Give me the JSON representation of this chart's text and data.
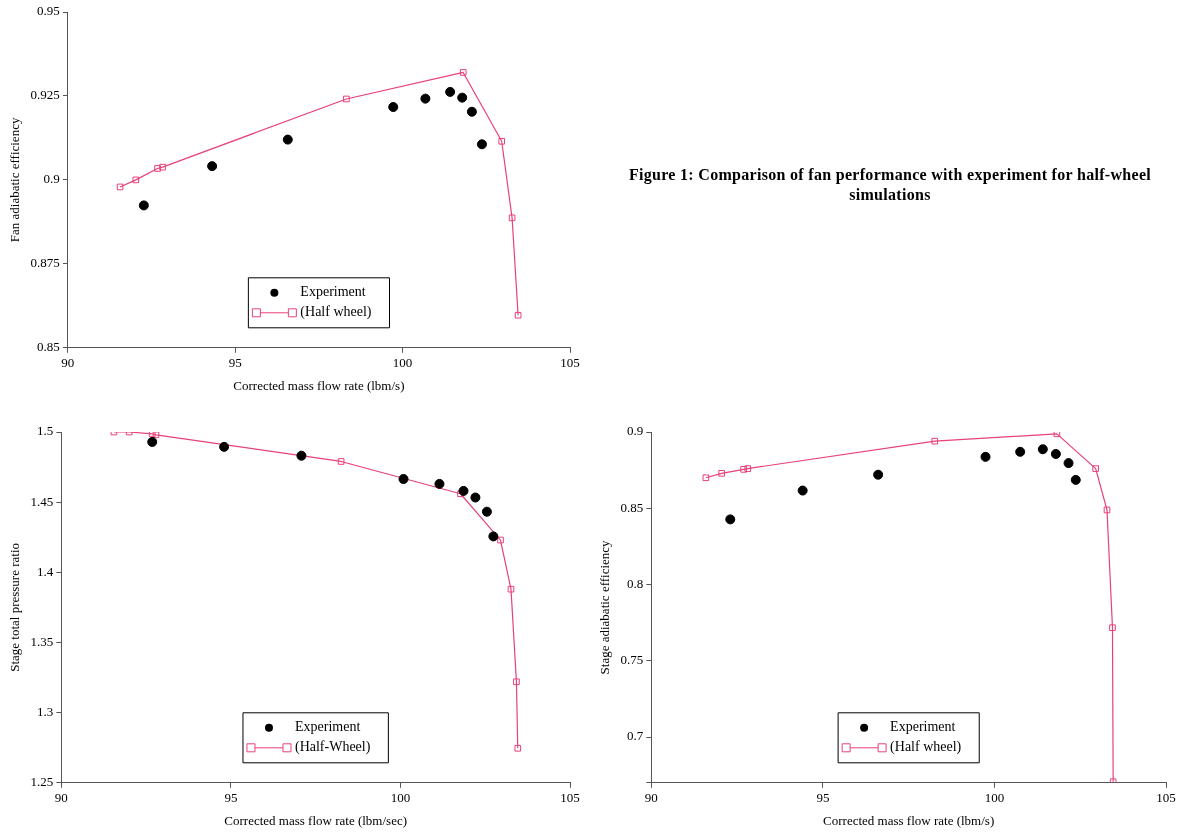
{
  "chart_data": [
    {
      "type": "scatter",
      "xlabel": "Corrected mass flow rate (lbm/s)",
      "ylabel": "Fan adiabatic efficiency",
      "xlim": [
        90,
        105
      ],
      "xticks": [
        90,
        95,
        100,
        105
      ],
      "ylim": [
        0.85,
        0.95
      ],
      "yticks": [
        0.85,
        0.875,
        0.9,
        0.925,
        0.95
      ],
      "grid": false,
      "legend": "bottom",
      "annotations": [
        "Figure 1: Comparison of fan performance with experiment for half-wheel simulations"
      ],
      "series": [
        {
          "name": "Experiment",
          "type": "scatter",
          "marker": "circle",
          "color": "#000000",
          "x": [
            92.27,
            94.31,
            96.57,
            99.72,
            100.68,
            101.42,
            101.78,
            102.07,
            102.37
          ],
          "values": [
            0.8924,
            0.9041,
            0.912,
            0.9217,
            0.9242,
            0.9262,
            0.9245,
            0.9203,
            0.9106
          ]
        },
        {
          "name": "(Half wheel)",
          "type": "line",
          "marker": "square",
          "line_style": "solid",
          "color": "#e8407a",
          "x": [
            91.56,
            92.03,
            92.68,
            92.83,
            98.32,
            101.81,
            102.96,
            103.27,
            103.45
          ],
          "values": [
            0.8979,
            0.9,
            0.9034,
            0.9038,
            0.9241,
            0.932,
            0.9115,
            0.8887,
            0.8597
          ]
        }
      ]
    },
    {
      "type": "scatter",
      "xlabel": "Corrected mass flow rate (lbm/sec)",
      "ylabel": "Stage total pressure ratio",
      "xlim": [
        90,
        105
      ],
      "xticks": [
        90,
        95,
        100,
        105
      ],
      "ylim": [
        1.25,
        1.5
      ],
      "yticks": [
        1.25,
        1.3,
        1.35,
        1.4,
        1.45,
        1.5
      ],
      "grid": false,
      "legend": "bottom",
      "series": [
        {
          "name": "Experiment",
          "type": "scatter",
          "marker": "circle",
          "color": "#000000",
          "x": [
            92.68,
            94.8,
            97.08,
            100.09,
            101.15,
            101.86,
            102.21,
            102.55,
            102.74
          ],
          "values": [
            1.4929,
            1.4894,
            1.4831,
            1.4665,
            1.463,
            1.458,
            1.4533,
            1.4432,
            1.4256
          ]
        },
        {
          "name": "(Half-Wheel)",
          "type": "line",
          "marker": "square",
          "line_style": "solid",
          "color": "#e8407a",
          "x": [
            91.55,
            92.0,
            92.68,
            92.79,
            98.25,
            101.77,
            102.95,
            103.26,
            103.42,
            103.46
          ],
          "values": [
            1.5,
            1.5,
            1.4987,
            1.498,
            1.479,
            1.456,
            1.423,
            1.388,
            1.322,
            1.2746
          ]
        }
      ]
    },
    {
      "type": "scatter",
      "xlabel": "Corrected mass flow rate (lbm/s)",
      "ylabel": "Stage adiabatic efficiency",
      "xlim": [
        90,
        105
      ],
      "xticks": [
        90,
        95,
        100,
        105
      ],
      "ylim": [
        0.67,
        0.9
      ],
      "yticks": [
        {
          "value": 0.67,
          "label": null
        },
        0.7,
        0.75,
        0.8,
        0.85,
        0.9
      ],
      "grid": false,
      "legend": "bottom",
      "series": [
        {
          "name": "Experiment",
          "type": "scatter",
          "marker": "circle",
          "color": "#000000",
          "x": [
            92.3,
            94.41,
            96.61,
            99.74,
            100.75,
            101.41,
            101.79,
            102.16,
            102.37
          ],
          "values": [
            0.8427,
            0.8616,
            0.872,
            0.8837,
            0.887,
            0.8887,
            0.8856,
            0.8796,
            0.8686
          ]
        },
        {
          "name": "(Half wheel)",
          "type": "line",
          "marker": "square",
          "line_style": "solid",
          "color": "#e8407a",
          "x": [
            91.59,
            92.05,
            92.69,
            92.81,
            98.26,
            101.82,
            102.95,
            103.28,
            103.44,
            103.46
          ],
          "values": [
            0.87,
            0.8729,
            0.8755,
            0.876,
            0.894,
            0.8988,
            0.876,
            0.8489,
            0.7717,
            0.6707
          ]
        }
      ]
    }
  ]
}
